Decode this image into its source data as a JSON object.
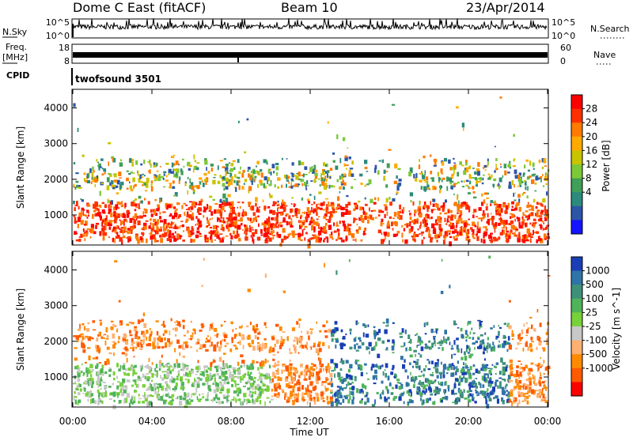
{
  "header": {
    "station": "Dome C East (fitACF)",
    "beam": "Beam 10",
    "date": "23/Apr/2014"
  },
  "strips": {
    "nsky_label": "N.Sky",
    "nsky_ticks": [
      "10^5",
      "10^0"
    ],
    "nsearch_label": "N.Search",
    "nsearch_ticks": [
      "10^5",
      "10^0"
    ],
    "freq_label_1": "Freq.",
    "freq_label_2": "[MHz]",
    "freq_ticks": [
      "18",
      "8"
    ],
    "nave_label": "Nave",
    "nave_ticks": [
      "60",
      "0"
    ],
    "cpid_label": "CPID",
    "cpid_value": "twofsound 3501"
  },
  "chart_data": [
    {
      "type": "heatmap",
      "panel": "power",
      "ylabel": "Slant Range [km]",
      "yticks": [
        "4000",
        "3000",
        "2000",
        "1000"
      ],
      "ylim": [
        180,
        4500
      ],
      "xlim": [
        0,
        24
      ],
      "colorbar": {
        "label": "Power [dB]",
        "ticks": [
          "28",
          "24",
          "20",
          "16",
          "12",
          "8",
          "4"
        ],
        "colors": [
          "#ff0000",
          "#ff3000",
          "#ff7a00",
          "#ffaa00",
          "#c9c400",
          "#7cc838",
          "#3f9e57",
          "#2c8a7c",
          "#2c55a8",
          "#1414ff"
        ]
      },
      "bands": [
        {
          "range": [
            400,
            1400
          ],
          "t": [
            0,
            14
          ],
          "level": "high"
        },
        {
          "range": [
            500,
            1300
          ],
          "t": [
            17,
            24
          ],
          "level": "high"
        },
        {
          "range": [
            1800,
            2600
          ],
          "t": [
            6,
            11
          ],
          "level": "medium"
        },
        {
          "range": [
            1500,
            2400
          ],
          "t": [
            0,
            2
          ],
          "level": "low"
        },
        {
          "range": [
            1400,
            2200
          ],
          "t": [
            16,
            21
          ],
          "level": "medium"
        }
      ]
    },
    {
      "type": "heatmap",
      "panel": "velocity",
      "ylabel": "Slant Range [km]",
      "yticks": [
        "4000",
        "3000",
        "2000",
        "1000"
      ],
      "ylim": [
        180,
        4500
      ],
      "xlim": [
        0,
        24
      ],
      "colorbar": {
        "label": "Velocity [m s^-1]",
        "ticks": [
          "1000",
          "500",
          "100",
          "25",
          "-25",
          "-100",
          "-500",
          "-1000"
        ],
        "colors": [
          "#1a3fb5",
          "#2f74a8",
          "#3f9079",
          "#4fb35a",
          "#79d13a",
          "#c8c8c8",
          "#ffb070",
          "#ff8a00",
          "#ff5a00",
          "#ff0000"
        ]
      },
      "xticks": [
        "00:00",
        "04:00",
        "08:00",
        "12:00",
        "16:00",
        "20:00",
        "00:00"
      ],
      "xlabel": "Time UT"
    }
  ]
}
